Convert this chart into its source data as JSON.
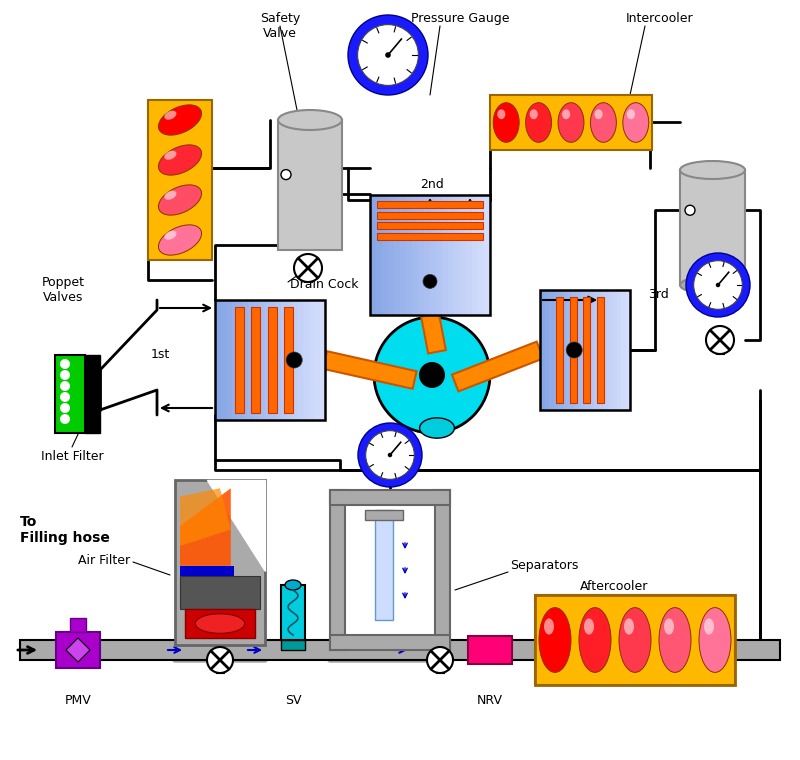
{
  "bg_color": "#ffffff",
  "labels": {
    "safety_valve": "Safety\nValve",
    "pressure_gauge": "Pressure Gauge",
    "intercooler": "Intercooler",
    "drain_cock": "Drain Cock",
    "poppet_valves": "Poppet\nValves",
    "inlet_filter": "Inlet Filter",
    "first": "1st",
    "second": "2nd",
    "third": "3rd",
    "separators": "Separators",
    "air_filter": "Air Filter",
    "aftercooler": "Aftercooler",
    "to_filling": "To\nFilling hose",
    "pmv": "PMV",
    "sv": "SV",
    "nrv": "NRV"
  }
}
